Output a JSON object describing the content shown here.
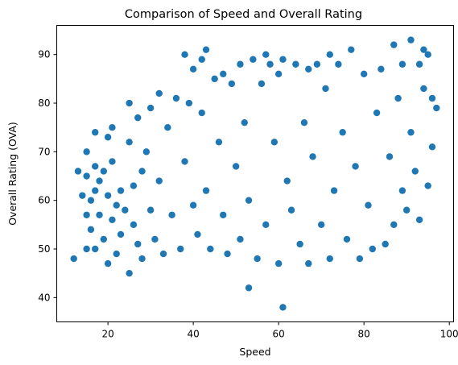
{
  "chart_data": {
    "type": "scatter",
    "title": "Comparison of Speed and Overall Rating",
    "xlabel": "Speed",
    "ylabel": "Overall Rating (OVA)",
    "xlim": [
      8,
      101
    ],
    "ylim": [
      35,
      96
    ],
    "xticks": [
      20,
      40,
      60,
      80,
      100
    ],
    "yticks": [
      40,
      50,
      60,
      70,
      80,
      90
    ],
    "grid": false,
    "legend": null,
    "point_color": "#1f77b4",
    "series": [
      {
        "points": [
          [
            12,
            48
          ],
          [
            13,
            66
          ],
          [
            14,
            61
          ],
          [
            15,
            70
          ],
          [
            15,
            65
          ],
          [
            15,
            57
          ],
          [
            15,
            50
          ],
          [
            16,
            60
          ],
          [
            16,
            54
          ],
          [
            17,
            74
          ],
          [
            17,
            67
          ],
          [
            17,
            62
          ],
          [
            17,
            50
          ],
          [
            18,
            57
          ],
          [
            18,
            64
          ],
          [
            19,
            52
          ],
          [
            19,
            66
          ],
          [
            20,
            73
          ],
          [
            20,
            61
          ],
          [
            20,
            47
          ],
          [
            21,
            75
          ],
          [
            21,
            68
          ],
          [
            21,
            56
          ],
          [
            22,
            59
          ],
          [
            22,
            49
          ],
          [
            23,
            62
          ],
          [
            23,
            53
          ],
          [
            24,
            58
          ],
          [
            25,
            80
          ],
          [
            25,
            45
          ],
          [
            25,
            72
          ],
          [
            26,
            63
          ],
          [
            26,
            55
          ],
          [
            27,
            77
          ],
          [
            27,
            51
          ],
          [
            28,
            66
          ],
          [
            28,
            48
          ],
          [
            29,
            70
          ],
          [
            30,
            79
          ],
          [
            30,
            58
          ],
          [
            31,
            52
          ],
          [
            32,
            82
          ],
          [
            32,
            64
          ],
          [
            33,
            49
          ],
          [
            34,
            75
          ],
          [
            35,
            57
          ],
          [
            36,
            81
          ],
          [
            37,
            50
          ],
          [
            38,
            90
          ],
          [
            38,
            68
          ],
          [
            39,
            80
          ],
          [
            40,
            87
          ],
          [
            40,
            59
          ],
          [
            41,
            53
          ],
          [
            42,
            89
          ],
          [
            42,
            78
          ],
          [
            43,
            91
          ],
          [
            43,
            62
          ],
          [
            44,
            50
          ],
          [
            45,
            85
          ],
          [
            46,
            72
          ],
          [
            47,
            86
          ],
          [
            47,
            57
          ],
          [
            48,
            49
          ],
          [
            49,
            84
          ],
          [
            50,
            67
          ],
          [
            51,
            88
          ],
          [
            51,
            52
          ],
          [
            52,
            76
          ],
          [
            53,
            42
          ],
          [
            53,
            60
          ],
          [
            54,
            89
          ],
          [
            55,
            48
          ],
          [
            56,
            84
          ],
          [
            57,
            90
          ],
          [
            57,
            55
          ],
          [
            58,
            88
          ],
          [
            59,
            72
          ],
          [
            60,
            47
          ],
          [
            60,
            86
          ],
          [
            61,
            38
          ],
          [
            61,
            89
          ],
          [
            62,
            64
          ],
          [
            63,
            58
          ],
          [
            64,
            88
          ],
          [
            65,
            51
          ],
          [
            66,
            76
          ],
          [
            67,
            87
          ],
          [
            67,
            47
          ],
          [
            68,
            69
          ],
          [
            69,
            88
          ],
          [
            70,
            55
          ],
          [
            71,
            83
          ],
          [
            72,
            90
          ],
          [
            72,
            48
          ],
          [
            73,
            62
          ],
          [
            74,
            88
          ],
          [
            75,
            74
          ],
          [
            76,
            52
          ],
          [
            77,
            91
          ],
          [
            78,
            67
          ],
          [
            79,
            48
          ],
          [
            80,
            86
          ],
          [
            81,
            59
          ],
          [
            82,
            50
          ],
          [
            83,
            78
          ],
          [
            84,
            87
          ],
          [
            85,
            51
          ],
          [
            86,
            69
          ],
          [
            87,
            92
          ],
          [
            87,
            55
          ],
          [
            88,
            81
          ],
          [
            89,
            88
          ],
          [
            89,
            62
          ],
          [
            90,
            58
          ],
          [
            91,
            93
          ],
          [
            91,
            74
          ],
          [
            92,
            66
          ],
          [
            93,
            88
          ],
          [
            93,
            56
          ],
          [
            94,
            91
          ],
          [
            94,
            83
          ],
          [
            95,
            90
          ],
          [
            95,
            63
          ],
          [
            96,
            81
          ],
          [
            96,
            71
          ],
          [
            97,
            79
          ]
        ]
      }
    ]
  }
}
